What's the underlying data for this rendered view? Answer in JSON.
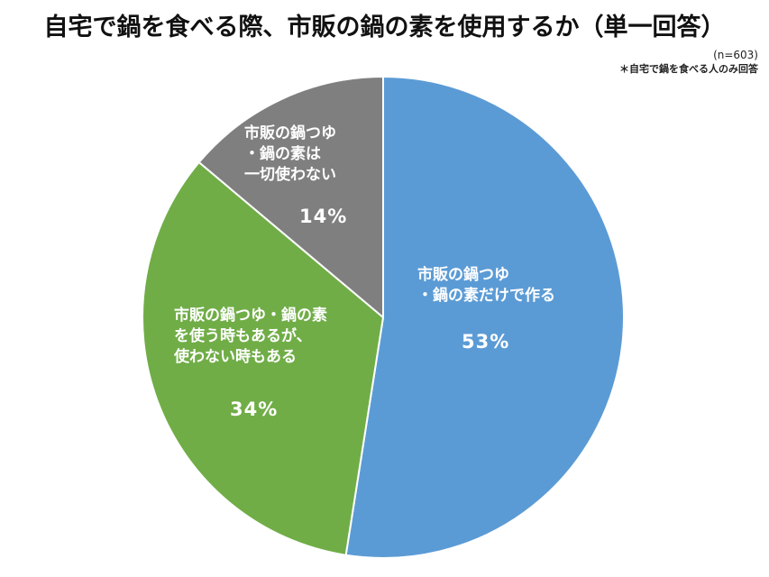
{
  "title": "自宅で鍋を食べる際、市販の鍋の素を使用するか（単一回答）",
  "sample_note": "(n=603)",
  "respondent_note": "＊自宅で鍋を食べる人のみ回答",
  "slices": [
    {
      "label_lines": [
        "市販の鍋つゆ",
        "・鍋の素だけで作る"
      ],
      "pct_label": "53%",
      "color": "#5b9bd5"
    },
    {
      "label_lines": [
        "市販の鍋つゆ・鍋の素",
        "を使う時もあるが、",
        "使わない時もある"
      ],
      "pct_label": "34%",
      "color": "#70ad47"
    },
    {
      "label_lines": [
        "市販の鍋つゆ",
        "・鍋の素は",
        "一切使わない"
      ],
      "pct_label": "14%",
      "color": "#7f7f7f"
    }
  ],
  "chart_data": {
    "type": "pie",
    "title": "自宅で鍋を食べる際、市販の鍋の素を使用するか（単一回答）",
    "categories": [
      "市販の鍋つゆ・鍋の素だけで作る",
      "市販の鍋つゆ・鍋の素を使う時もあるが、使わない時もある",
      "市販の鍋つゆ・鍋の素は一切使わない"
    ],
    "values": [
      53,
      34,
      14
    ],
    "unit": "%",
    "n": 603,
    "annotations": [
      "(n=603)",
      "＊自宅で鍋を食べる人のみ回答"
    ],
    "start_angle": "12 o'clock, clockwise",
    "colors": [
      "#5b9bd5",
      "#70ad47",
      "#7f7f7f"
    ],
    "legend": "none (labels inside slices)"
  }
}
